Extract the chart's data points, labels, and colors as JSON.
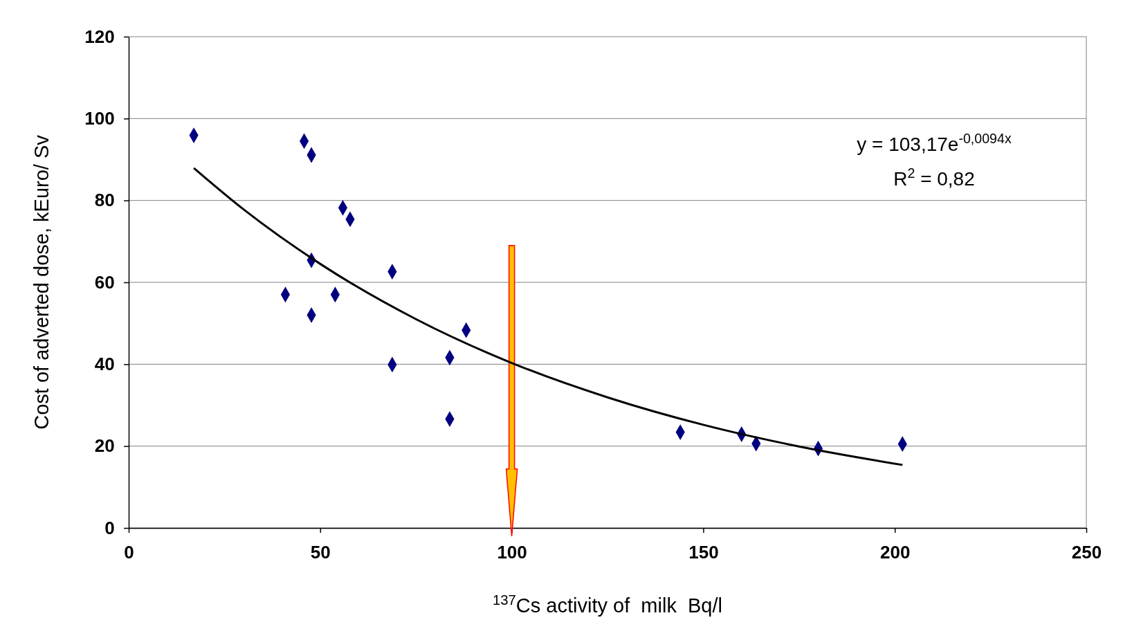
{
  "chart_data": {
    "type": "scatter",
    "xlabel": "$^{137}$Cs activity of  milk  Bq/l",
    "ylabel": "Cost of adverted dose, kEuro/ Sv",
    "xlim": [
      0,
      250
    ],
    "xticks": [
      0,
      50,
      100,
      150,
      200,
      250
    ],
    "ylim": [
      0,
      120
    ],
    "yticks": [
      0,
      20,
      40,
      60,
      80,
      100,
      120
    ],
    "grid": "y",
    "series": [
      {
        "color": "#000080",
        "marker": "diamond",
        "x": [
          17,
          45.8,
          47.7,
          55.9,
          57.8,
          47.7,
          68.8,
          40.9,
          53.9,
          47.7,
          88.1,
          83.8,
          68.8,
          83.8,
          144,
          160,
          163.8,
          180,
          202
        ],
        "values": [
          95.9,
          94.5,
          91.1,
          78.2,
          75.4,
          65.4,
          62.6,
          57,
          57,
          52,
          48.3,
          41.6,
          39.9,
          26.6,
          23.4,
          22.9,
          20.6,
          19.4,
          20.5
        ]
      },
      {
        "type": "line",
        "color": "#000000",
        "marker": "none",
        "line_style": "solid",
        "x": [
          17,
          30,
          50,
          75,
          100,
          125,
          150,
          175,
          202
        ],
        "values": [
          87.9,
          77.8,
          64.5,
          51,
          40.3,
          31.9,
          25.2,
          19.9,
          15.4
        ]
      }
    ],
    "ref_lines": [
      {
        "axis": "x",
        "value": 100,
        "color": "#ffc000"
      }
    ],
    "annotations": [
      "y = 103,17e$^{-0,0094x}$",
      "R$^{2}$ = 0,82"
    ]
  }
}
